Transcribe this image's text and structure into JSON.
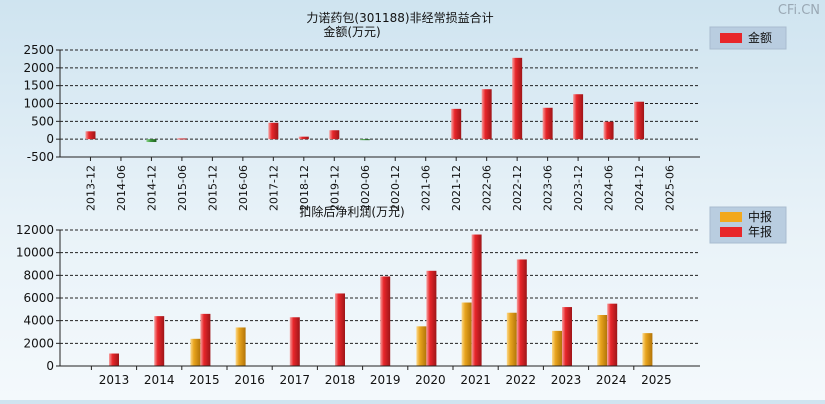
{
  "watermark": "CFi.CN",
  "colors": {
    "annual": "#e8262a",
    "interim": "#f2a81d",
    "negative": "#3c9a3c",
    "legend_bg": "#b9cde0"
  },
  "chart_data": [
    {
      "type": "bar",
      "title": "力诺药包(301188)非经常损益合计",
      "subtitle": "金额(万元)",
      "legend": [
        "金额"
      ],
      "legend_position": "top-right",
      "grid": true,
      "ylim": [
        -500,
        2500
      ],
      "yticks": [
        "2500",
        "2000",
        "1500",
        "1000",
        "500",
        "0",
        "-500"
      ],
      "ytick_values": [
        2500,
        2000,
        1500,
        1000,
        500,
        0,
        -500
      ],
      "categories": [
        "2013-12",
        "2014-06",
        "2014-12",
        "2015-06",
        "2015-12",
        "2016-06",
        "2017-12",
        "2018-12",
        "2019-12",
        "2020-06",
        "2020-12",
        "2021-06",
        "2021-12",
        "2022-06",
        "2022-12",
        "2023-06",
        "2023-12",
        "2024-06",
        "2024-12",
        "2025-06"
      ],
      "values": [
        220,
        null,
        -80,
        20,
        null,
        null,
        460,
        70,
        250,
        -20,
        null,
        null,
        850,
        1400,
        2280,
        880,
        1260,
        490,
        1050,
        null
      ]
    },
    {
      "type": "bar",
      "title": "扣除后净利润(万元)",
      "legend": [
        "中报",
        "年报"
      ],
      "legend_position": "top-right",
      "grid": true,
      "ylim": [
        0,
        12000
      ],
      "yticks": [
        "12000",
        "10000",
        "8000",
        "6000",
        "4000",
        "2000",
        "0"
      ],
      "ytick_values": [
        12000,
        10000,
        8000,
        6000,
        4000,
        2000,
        0
      ],
      "categories": [
        "2013",
        "2014",
        "2015",
        "2016",
        "2017",
        "2018",
        "2019",
        "2020",
        "2021",
        "2022",
        "2023",
        "2024",
        "2025"
      ],
      "series": [
        {
          "name": "中报",
          "values": [
            null,
            null,
            2400,
            3400,
            null,
            null,
            null,
            3500,
            5600,
            4700,
            3100,
            4500,
            2900
          ]
        },
        {
          "name": "年报",
          "values": [
            1100,
            4400,
            4600,
            null,
            4300,
            6400,
            7900,
            8400,
            11600,
            9400,
            5200,
            5500,
            null
          ]
        }
      ]
    }
  ]
}
